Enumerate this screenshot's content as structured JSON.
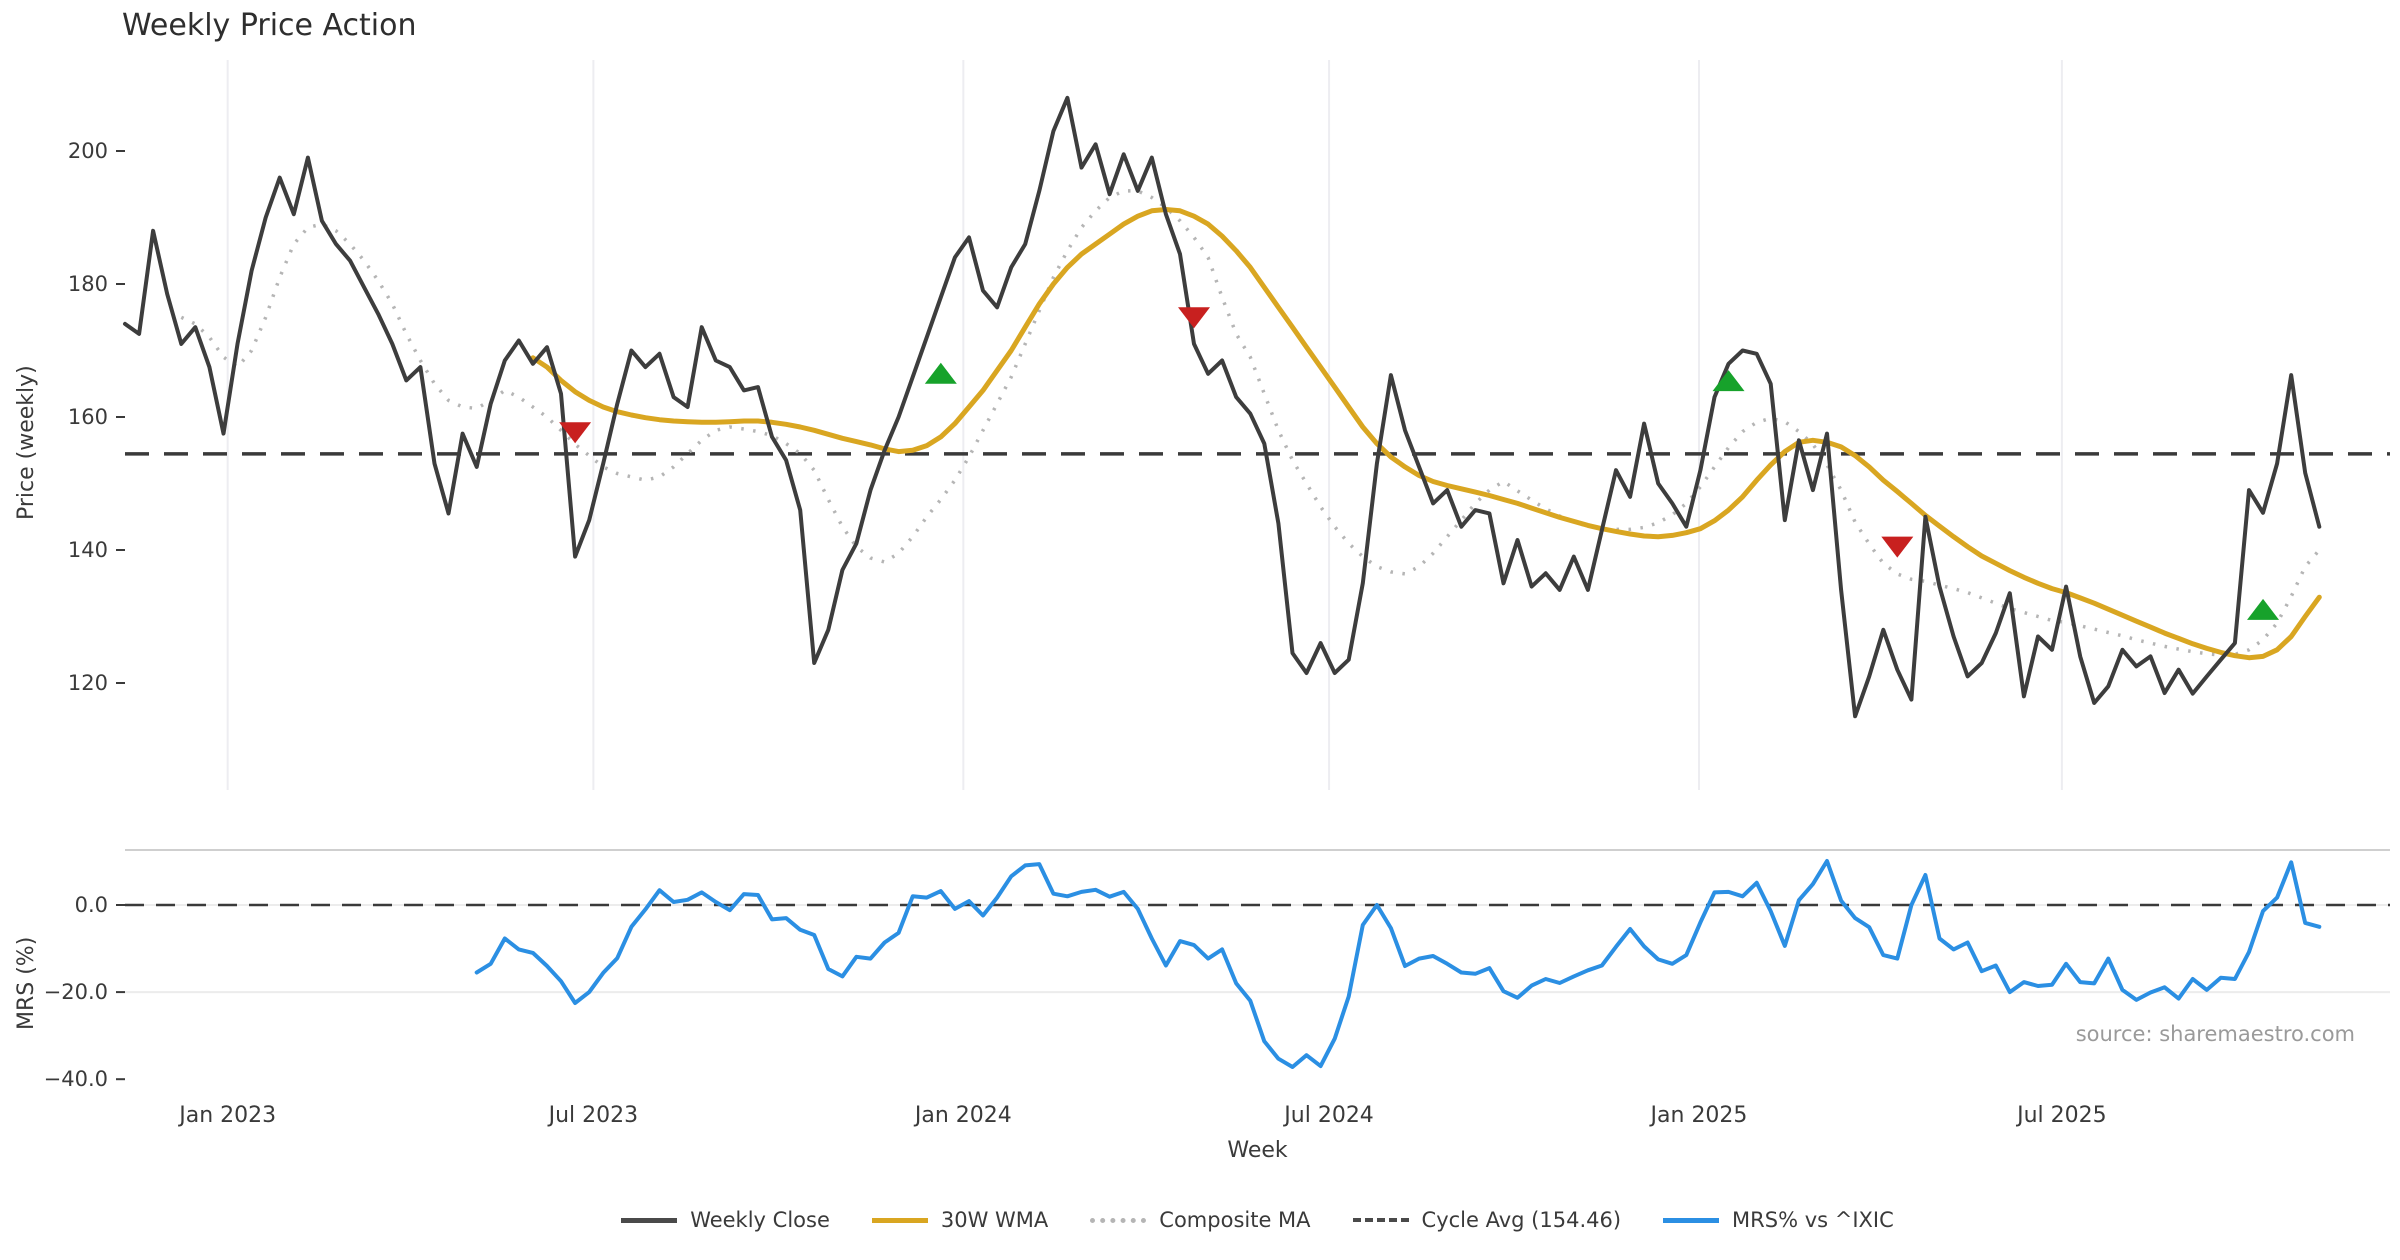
{
  "title": "Weekly Price Action",
  "xlabel": "Week",
  "source": "source: sharemaestro.com",
  "price_panel": {
    "ylabel": "Price (weekly)"
  },
  "mrs_panel": {
    "ylabel": "MRS (%)"
  },
  "legend": [
    {
      "label": "Weekly Close",
      "color": "#4a4a4a",
      "style": "solid"
    },
    {
      "label": "30W WMA",
      "color": "#d9a621",
      "style": "solid"
    },
    {
      "label": "Composite MA",
      "color": "#b5b5b5",
      "style": "dotted"
    },
    {
      "label": "Cycle Avg (154.46)",
      "color": "#4a4a4a",
      "style": "dashed"
    },
    {
      "label": "MRS% vs ^IXIC",
      "color": "#2b8fe3",
      "style": "solid"
    }
  ],
  "chart_data": [
    {
      "type": "line",
      "panel": "price",
      "title": "Weekly Price Action",
      "ylabel": "Price (weekly)",
      "yticks": [
        120,
        140,
        160,
        180,
        200
      ],
      "ylim": [
        104,
        214
      ],
      "xlim_weeks": [
        -1,
        161
      ],
      "grid": "vertical-only",
      "x_ticks": [
        {
          "week": 7.3,
          "label": "Jan 2023"
        },
        {
          "week": 33.3,
          "label": "Jul 2023"
        },
        {
          "week": 59.6,
          "label": "Jan 2024"
        },
        {
          "week": 85.6,
          "label": "Jul 2024"
        },
        {
          "week": 111.9,
          "label": "Jan 2025"
        },
        {
          "week": 137.7,
          "label": "Jul 2025"
        }
      ],
      "cycle_avg": 154.46,
      "series": [
        {
          "name": "Weekly Close",
          "color": "#3d3d3d",
          "style": "solid",
          "width": 4,
          "start_week": 0,
          "values": [
            174,
            172.5,
            188,
            178.5,
            171,
            173.5,
            167.5,
            157.5,
            171,
            182,
            190,
            196,
            190.5,
            199,
            189.5,
            186,
            183.5,
            179.5,
            175.5,
            171,
            165.5,
            167.5,
            153,
            145.5,
            157.5,
            152.5,
            162,
            168.5,
            171.5,
            168,
            170.5,
            163.5,
            139,
            144.5,
            153,
            162,
            170,
            167.5,
            169.5,
            163,
            161.5,
            173.5,
            168.5,
            167.5,
            164,
            164.5,
            157,
            153.5,
            146,
            123,
            128,
            137,
            141,
            149,
            155,
            160,
            166,
            172,
            178,
            184,
            187,
            179,
            176.5,
            182.5,
            186,
            194,
            203,
            208,
            197.5,
            201,
            193.5,
            199.5,
            194,
            199,
            190.5,
            184.5,
            171,
            166.5,
            168.5,
            163,
            160.5,
            156,
            144,
            124.5,
            121.5,
            126,
            121.5,
            123.5,
            135,
            153,
            166.3,
            158,
            152.5,
            147,
            149,
            143.5,
            146,
            145.5,
            135,
            141.5,
            134.5,
            136.5,
            134,
            139,
            134,
            143,
            152,
            148,
            159,
            150,
            147,
            143.5,
            152,
            163,
            168,
            170,
            169.5,
            165,
            144.5,
            156.5,
            149,
            157.5,
            134,
            115,
            121,
            128,
            122,
            117.5,
            145,
            134.5,
            127,
            121,
            123,
            127.5,
            133.5,
            118,
            127,
            125,
            134.5,
            124,
            117,
            119.5,
            125,
            122.5,
            124,
            118.5,
            122,
            118.4,
            121,
            123.5,
            126,
            149,
            145.6,
            153,
            166.3,
            151.6,
            143.5
          ]
        },
        {
          "name": "30W WMA",
          "color": "#d9a621",
          "style": "solid",
          "width": 5,
          "start_week": 29,
          "values": [
            168.9,
            167.5,
            165.5,
            163.8,
            162.5,
            161.5,
            160.8,
            160.3,
            159.9,
            159.6,
            159.4,
            159.3,
            159.2,
            159.2,
            159.3,
            159.4,
            159.4,
            159.2,
            158.9,
            158.5,
            158.0,
            157.4,
            156.8,
            156.3,
            155.8,
            155.2,
            154.8,
            155.0,
            155.7,
            157.0,
            159.0,
            161.5,
            164.0,
            167.0,
            170.0,
            173.5,
            177.0,
            180.0,
            182.5,
            184.5,
            186.0,
            187.5,
            189.0,
            190.2,
            191.0,
            191.2,
            191.0,
            190.2,
            189.0,
            187.2,
            185.0,
            182.5,
            179.5,
            176.5,
            173.5,
            170.5,
            167.5,
            164.5,
            161.5,
            158.5,
            156.0,
            154.0,
            152.5,
            151.2,
            150.3,
            149.7,
            149.2,
            148.7,
            148.2,
            147.6,
            147.0,
            146.3,
            145.6,
            144.9,
            144.3,
            143.7,
            143.2,
            142.8,
            142.4,
            142.1,
            142.0,
            142.2,
            142.6,
            143.2,
            144.4,
            146.0,
            148.0,
            150.5,
            152.8,
            154.8,
            156.2,
            156.5,
            156.2,
            155.5,
            154.2,
            152.5,
            150.5,
            148.8,
            147.0,
            145.2,
            143.6,
            142.0,
            140.5,
            139.1,
            138.0,
            136.9,
            135.9,
            135.0,
            134.2,
            133.6,
            132.8,
            132.0,
            131.1,
            130.2,
            129.3,
            128.4,
            127.5,
            126.7,
            125.9,
            125.2,
            124.6,
            124.1,
            123.8,
            124.0,
            125.0,
            127.0,
            130.0,
            132.9
          ]
        },
        {
          "name": "Composite MA",
          "color": "#b5b5b5",
          "style": "dotted",
          "width": 3.5,
          "start_week": 4,
          "values": [
            175,
            174,
            172,
            169,
            167.5,
            170,
            175,
            181,
            186,
            188.5,
            189,
            188,
            186,
            183.5,
            180.5,
            177,
            172.5,
            168.5,
            165,
            162.5,
            161.5,
            161.3,
            162.5,
            164,
            163,
            161.5,
            160,
            158,
            155.9,
            154.2,
            152.5,
            151.5,
            151,
            150.5,
            151,
            152.5,
            154.5,
            156.5,
            158,
            158.5,
            158.2,
            157.8,
            157.2,
            156,
            154.5,
            152,
            147.6,
            143.5,
            140.5,
            138.8,
            138.2,
            139.5,
            142,
            145,
            147.6,
            150.5,
            154,
            158,
            162,
            166,
            171,
            176,
            181,
            185,
            188.5,
            191,
            193,
            194,
            194,
            193,
            191.5,
            189.5,
            187,
            184,
            178,
            172.5,
            169,
            163.5,
            158,
            153.5,
            150,
            146.5,
            143.5,
            141,
            139,
            137.5,
            136.7,
            136.4,
            137.5,
            139.5,
            142,
            144.5,
            147,
            149,
            150.3,
            148.9,
            147.5,
            146.2,
            145.1,
            144.2,
            143.6,
            143.2,
            143.1,
            143.1,
            143.4,
            144.1,
            145.3,
            147.0,
            149.5,
            152.5,
            155.4,
            157.8,
            159.2,
            159.8,
            159.3,
            157.8,
            155.9,
            152.8,
            149.0,
            144.2,
            140.9,
            138.0,
            136.4,
            135.6,
            135.3,
            134.7,
            134.2,
            133.6,
            132.8,
            132.0,
            131.2,
            130.6,
            130.0,
            129.4,
            129.1,
            128.6,
            128.1,
            127.6,
            127.1,
            126.5,
            126.0,
            125.5,
            125.1,
            124.7,
            124.4,
            124.2,
            124.3,
            125.0,
            126.5,
            129.0,
            133.0,
            137.5,
            140.0
          ]
        },
        {
          "name": "Cycle Avg (154.46)",
          "color": "#3a3a3a",
          "style": "dashed",
          "width": 3.5,
          "constant": 154.46
        }
      ],
      "markers": {
        "sell_down_triangles": {
          "color": "#c8201f",
          "points": [
            {
              "week": 32,
              "value": 157.7
            },
            {
              "week": 76,
              "value": 175.0
            },
            {
              "week": 126,
              "value": 140.5
            }
          ]
        },
        "buy_up_triangles": {
          "color": "#17a22b",
          "points": [
            {
              "week": 58,
              "value": 166.5
            },
            {
              "week": 114,
              "value": 165.4
            },
            {
              "week": 152,
              "value": 131.0
            }
          ]
        }
      }
    },
    {
      "type": "line",
      "panel": "mrs",
      "ylabel": "MRS (%)",
      "ytick_labels": [
        "0.0",
        "−20.0",
        "−40.0"
      ],
      "yticks": [
        0,
        -20,
        -40
      ],
      "ylim": [
        -42.5,
        12.6
      ],
      "zero_dashed_line": 0,
      "gridlines_horizontal": [
        0,
        -20
      ],
      "top_border": true,
      "series": [
        {
          "name": "MRS% vs ^IXIC",
          "color": "#2b8fe3",
          "style": "solid",
          "width": 4,
          "start_week": 25,
          "values": [
            -15.5,
            -13.5,
            -7.7,
            -10.2,
            -11.0,
            -14.0,
            -17.5,
            -22.5,
            -20.0,
            -15.6,
            -12.2,
            -5.0,
            -1.0,
            3.4,
            0.7,
            1.2,
            2.9,
            0.7,
            -1.2,
            2.5,
            2.3,
            -3.3,
            -3.0,
            -5.7,
            -6.9,
            -14.7,
            -16.4,
            -11.9,
            -12.3,
            -8.6,
            -6.4,
            2.0,
            1.7,
            3.2,
            -0.9,
            0.9,
            -2.4,
            1.7,
            6.6,
            9.1,
            9.4,
            2.6,
            2.0,
            3.0,
            3.5,
            1.9,
            3.0,
            -0.9,
            -7.7,
            -13.9,
            -8.3,
            -9.2,
            -12.3,
            -10.2,
            -18.0,
            -22.0,
            -31.3,
            -35.3,
            -37.2,
            -34.5,
            -37.0,
            -30.7,
            -21.0,
            -4.6,
            0.0,
            -5.3,
            -14.0,
            -12.3,
            -11.7,
            -13.5,
            -15.5,
            -15.8,
            -14.5,
            -19.8,
            -21.3,
            -18.5,
            -17.0,
            -17.9,
            -16.4,
            -15.0,
            -13.9,
            -9.6,
            -5.5,
            -9.5,
            -12.5,
            -13.5,
            -11.5,
            -4.0,
            2.9,
            3.0,
            2.0,
            5.1,
            -1.4,
            -9.4,
            1.1,
            4.8,
            10.1,
            1.0,
            -3.0,
            -5.1,
            -11.5,
            -12.3,
            0.0,
            6.9,
            -7.7,
            -10.2,
            -8.6,
            -15.2,
            -13.9,
            -20.0,
            -17.7,
            -18.6,
            -18.3,
            -13.5,
            -17.7,
            -18.0,
            -12.3,
            -19.5,
            -21.8,
            -20.1,
            -18.9,
            -21.5,
            -17.0,
            -19.5,
            -16.7,
            -17.0,
            -10.8,
            -1.4,
            1.7,
            9.8,
            -4.1,
            -5.0
          ]
        }
      ]
    }
  ]
}
